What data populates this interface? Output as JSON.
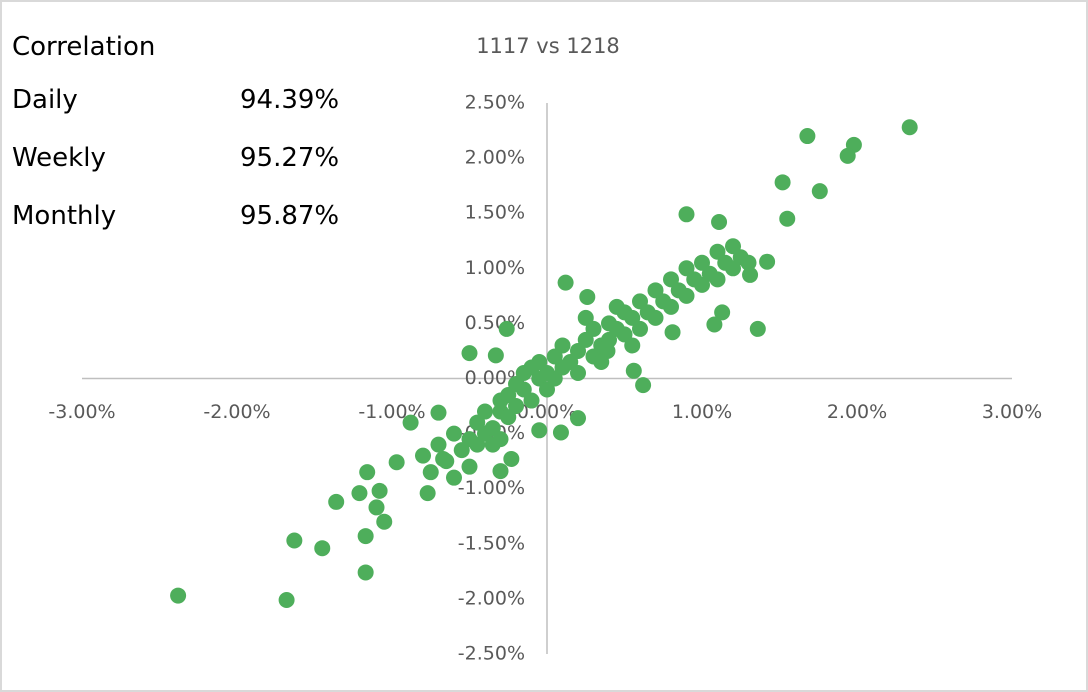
{
  "correlation": {
    "title": "Correlation",
    "rows": [
      {
        "label": "Daily",
        "value": "94.39%"
      },
      {
        "label": "Weekly",
        "value": "95.27%"
      },
      {
        "label": "Monthly",
        "value": "95.87%"
      }
    ]
  },
  "chart_data": {
    "type": "scatter",
    "title": "1117 vs 1218",
    "color": "#4eae5b",
    "xlim": [
      -3,
      3
    ],
    "ylim": [
      -2.5,
      2.5
    ],
    "xticks": [
      {
        "value": -3,
        "label": "-3.00%"
      },
      {
        "value": -2,
        "label": "-2.00%"
      },
      {
        "value": -1,
        "label": "-1.00%"
      },
      {
        "value": 0,
        "label": "0.00%"
      },
      {
        "value": 1,
        "label": "1.00%"
      },
      {
        "value": 2,
        "label": "2.00%"
      },
      {
        "value": 3,
        "label": "3.00%"
      }
    ],
    "yticks": [
      {
        "value": -2.5,
        "label": "-2.50%"
      },
      {
        "value": -2,
        "label": "-2.00%"
      },
      {
        "value": -1.5,
        "label": "-1.50%"
      },
      {
        "value": -1,
        "label": "-1.00%"
      },
      {
        "value": -0.5,
        "label": "-0.50%"
      },
      {
        "value": 0,
        "label": "0.00%"
      },
      {
        "value": 0.5,
        "label": "0.50%"
      },
      {
        "value": 1,
        "label": "1.00%"
      },
      {
        "value": 1.5,
        "label": "1.50%"
      },
      {
        "value": 2,
        "label": "2.00%"
      },
      {
        "value": 2.5,
        "label": "2.50%"
      }
    ],
    "x": [
      2.34,
      1.68,
      1.98,
      1.94,
      1.52,
      1.76,
      1.55,
      0.9,
      1.11,
      1.42,
      1.31,
      1.13,
      1.08,
      1.36,
      0.12,
      0.26,
      -0.5,
      -0.33,
      -0.26,
      0.56,
      0.62,
      0.81,
      -2.38,
      -1.68,
      -1.63,
      -1.45,
      -1.17,
      -1.17,
      -1.36,
      -1.05,
      -1.1,
      -1.16,
      -1.21,
      -1.08,
      -0.97,
      -0.88,
      -0.7,
      -0.67,
      -0.77,
      -0.3,
      -0.23,
      -0.05,
      0.09,
      0.2,
      0.39,
      -0.8,
      -0.75,
      -0.7,
      -0.65,
      -0.6,
      -0.6,
      -0.55,
      -0.5,
      -0.5,
      -0.45,
      -0.45,
      -0.4,
      -0.4,
      -0.35,
      -0.35,
      -0.3,
      -0.3,
      -0.25,
      -0.25,
      -0.2,
      -0.2,
      -0.15,
      -0.15,
      -0.1,
      -0.1,
      -0.05,
      -0.05,
      0,
      0,
      0.05,
      0.05,
      0.1,
      0.1,
      0.15,
      0.2,
      0.2,
      0.25,
      0.3,
      0.3,
      0.35,
      0.4,
      0.4,
      0.45,
      0.5,
      0.5,
      0.55,
      0.6,
      0.6,
      0.65,
      0.7,
      0.7,
      0.75,
      0.8,
      0.8,
      0.85,
      0.9,
      0.9,
      0.95,
      1.0,
      1.0,
      1.05,
      1.1,
      1.1,
      1.15,
      1.2,
      1.2,
      1.25,
      1.3,
      0.45,
      0.55,
      -0.3,
      0.25,
      0.35
    ],
    "y": [
      2.28,
      2.2,
      2.12,
      2.02,
      1.78,
      1.7,
      1.45,
      1.49,
      1.42,
      1.06,
      0.94,
      0.6,
      0.49,
      0.45,
      0.87,
      0.74,
      0.23,
      0.21,
      0.45,
      0.07,
      -0.06,
      0.42,
      -1.97,
      -2.01,
      -1.47,
      -1.54,
      -1.76,
      -1.43,
      -1.12,
      -1.3,
      -1.17,
      -0.85,
      -1.04,
      -1.02,
      -0.76,
      -0.4,
      -0.31,
      -0.73,
      -1.04,
      -0.84,
      -0.73,
      -0.47,
      -0.49,
      -0.36,
      0.25,
      -0.7,
      -0.85,
      -0.6,
      -0.75,
      -0.5,
      -0.9,
      -0.65,
      -0.55,
      -0.8,
      -0.4,
      -0.6,
      -0.5,
      -0.3,
      -0.45,
      -0.6,
      -0.3,
      -0.2,
      -0.35,
      -0.15,
      -0.25,
      -0.05,
      -0.1,
      0.05,
      -0.2,
      0.1,
      0.0,
      0.15,
      0.05,
      -0.1,
      0.2,
      0.0,
      0.1,
      0.3,
      0.15,
      0.25,
      0.05,
      0.35,
      0.2,
      0.45,
      0.3,
      0.5,
      0.35,
      0.45,
      0.6,
      0.4,
      0.55,
      0.7,
      0.45,
      0.6,
      0.8,
      0.55,
      0.7,
      0.9,
      0.65,
      0.8,
      1.0,
      0.75,
      0.9,
      1.05,
      0.85,
      0.95,
      1.15,
      0.9,
      1.05,
      1.2,
      1.0,
      1.1,
      1.05,
      0.65,
      0.3,
      -0.55,
      0.55,
      0.15
    ]
  }
}
